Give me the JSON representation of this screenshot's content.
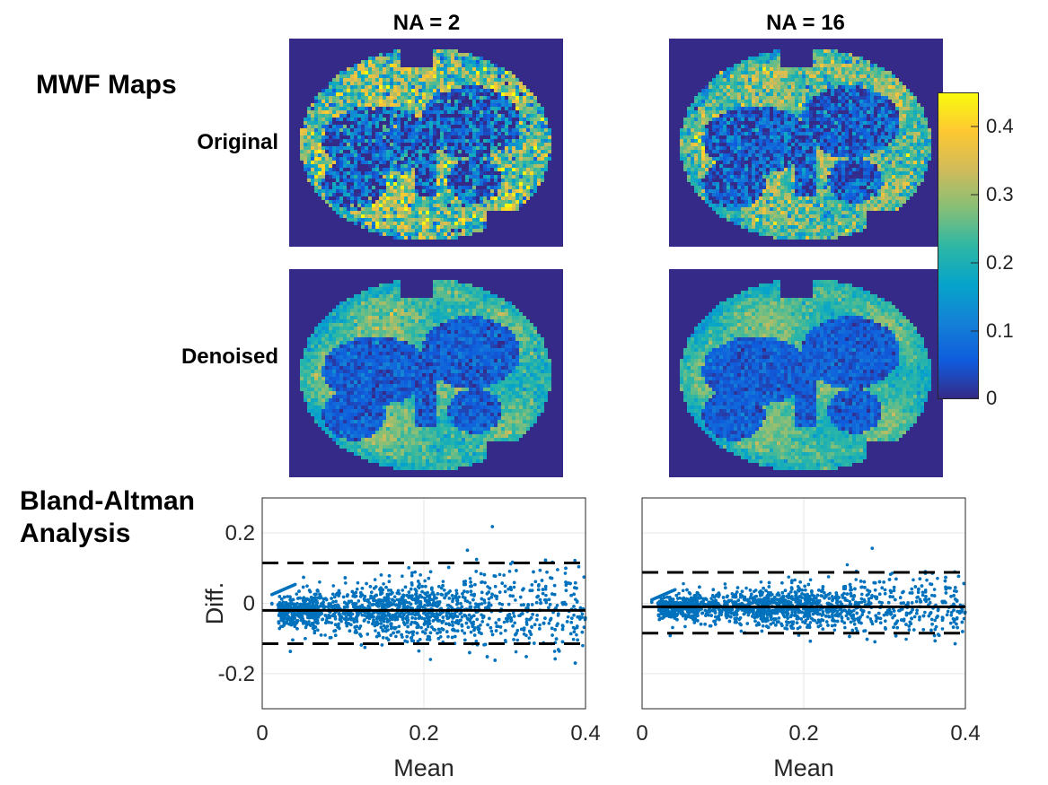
{
  "labels": {
    "col1": "NA = 2",
    "col2": "NA = 16",
    "mwf": "MWF Maps",
    "original": "Original",
    "denoised": "Denoised",
    "ba_line1": "Bland-Altman",
    "ba_line2": "Analysis"
  },
  "colorbar": {
    "ticks": [
      "0",
      "0.1",
      "0.2",
      "0.3",
      "0.4"
    ],
    "tick_values": [
      0,
      0.1,
      0.2,
      0.3,
      0.4
    ],
    "range": [
      0,
      0.45
    ],
    "colormap": "parula",
    "colors": [
      "#352a87",
      "#0f5cdd",
      "#1481d6",
      "#06a4ca",
      "#2eb7a4",
      "#87bf77",
      "#d1bb59",
      "#fec832",
      "#f9fb0e"
    ]
  },
  "maps": [
    {
      "name": "NA = 2 Original",
      "noise": 0.09,
      "gm_level": 0.3
    },
    {
      "name": "NA = 16 Original",
      "noise": 0.06,
      "gm_level": 0.29
    },
    {
      "name": "NA = 2 Denoised",
      "noise": 0.03,
      "gm_level": 0.27
    },
    {
      "name": "NA = 16 Denoised",
      "noise": 0.025,
      "gm_level": 0.27
    }
  ],
  "chart_data": [
    {
      "type": "scatter",
      "title": "",
      "xlabel": "Mean",
      "ylabel": "Diff.",
      "xlim": [
        0,
        0.4
      ],
      "ylim": [
        -0.3,
        0.3
      ],
      "xticks": [
        "0",
        "0.2",
        "0.4"
      ],
      "yticks": [
        "-0.2",
        "0",
        "0.2"
      ],
      "xtick_values": [
        0,
        0.2,
        0.4
      ],
      "ytick_values": [
        -0.2,
        0,
        0.2
      ],
      "grid": true,
      "mean_diff": -0.02,
      "loa_upper": 0.115,
      "loa_lower": -0.115,
      "spread": 0.05,
      "n_points": 2500,
      "marker_color": "#0072bd"
    },
    {
      "type": "scatter",
      "title": "",
      "xlabel": "Mean",
      "ylabel": "",
      "xlim": [
        0,
        0.4
      ],
      "ylim": [
        -0.3,
        0.3
      ],
      "xticks": [
        "0",
        "0.2",
        "0.4"
      ],
      "yticks": [],
      "xtick_values": [
        0,
        0.2,
        0.4
      ],
      "ytick_values": [],
      "grid": true,
      "mean_diff": -0.01,
      "loa_upper": 0.088,
      "loa_lower": -0.085,
      "spread": 0.035,
      "n_points": 2500,
      "marker_color": "#0072bd"
    }
  ]
}
